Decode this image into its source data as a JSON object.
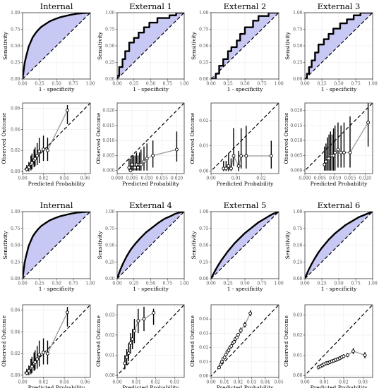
{
  "colors": {
    "roc_fill": "#c8c8f5",
    "curve": "#000000",
    "calib_line": "#999999",
    "grid": "#ebebeb",
    "frame": "#333333"
  },
  "chart_data": [
    {
      "type": "area",
      "title": "Internal",
      "xlabel": "1 - specificity",
      "ylabel": "Sensitivity",
      "xlim": [
        0,
        1
      ],
      "ylim": [
        0,
        1
      ],
      "xticks": [
        "0.00",
        "0.25",
        "0.50",
        "0.75",
        "1.00"
      ],
      "yticks": [
        "0.00",
        "0.25",
        "0.50",
        "0.75",
        "1.00"
      ],
      "x": [
        0,
        0.01,
        0.02,
        0.03,
        0.05,
        0.07,
        0.09,
        0.12,
        0.15,
        0.19,
        0.23,
        0.28,
        0.34,
        0.4,
        0.47,
        0.55,
        0.63,
        0.72,
        0.8,
        0.87,
        0.93,
        1
      ],
      "y": [
        0,
        0.08,
        0.16,
        0.24,
        0.33,
        0.41,
        0.49,
        0.56,
        0.63,
        0.69,
        0.74,
        0.79,
        0.83,
        0.87,
        0.9,
        0.93,
        0.95,
        0.97,
        0.985,
        0.99,
        0.995,
        1
      ]
    },
    {
      "type": "area",
      "title": "External 1",
      "xlabel": "1 - specificity",
      "ylabel": "Sensitivity",
      "xlim": [
        0,
        1
      ],
      "ylim": [
        0,
        1
      ],
      "xticks": [
        "0.00",
        "0.25",
        "0.50",
        "0.75",
        "1.00"
      ],
      "yticks": [
        "0.00",
        "0.25",
        "0.50",
        "0.75",
        "1.00"
      ],
      "x": [
        0,
        0,
        0.03,
        0.03,
        0.08,
        0.08,
        0.12,
        0.12,
        0.18,
        0.18,
        0.25,
        0.25,
        0.32,
        0.32,
        0.4,
        0.4,
        0.48,
        0.48,
        0.6,
        0.6,
        0.78,
        0.78,
        0.88,
        0.88,
        1
      ],
      "y": [
        0,
        0.05,
        0.05,
        0.18,
        0.18,
        0.3,
        0.3,
        0.42,
        0.42,
        0.55,
        0.55,
        0.62,
        0.62,
        0.7,
        0.7,
        0.78,
        0.78,
        0.85,
        0.85,
        0.92,
        0.92,
        0.96,
        0.96,
        1,
        1
      ]
    },
    {
      "type": "area",
      "title": "External 2",
      "xlabel": "1 - specificity",
      "ylabel": "Sensitivity",
      "xlim": [
        0,
        1
      ],
      "ylim": [
        0,
        1
      ],
      "xticks": [
        "0.00",
        "0.25",
        "0.50",
        "0.75",
        "1.00"
      ],
      "yticks": [
        "0.00",
        "0.25",
        "0.50",
        "0.75",
        "1.00"
      ],
      "x": [
        0,
        0.07,
        0.07,
        0.12,
        0.12,
        0.18,
        0.18,
        0.25,
        0.25,
        0.3,
        0.3,
        0.38,
        0.38,
        0.43,
        0.43,
        0.5,
        0.5,
        0.62,
        0.62,
        0.7,
        0.7,
        0.85,
        0.85,
        1
      ],
      "y": [
        0,
        0,
        0.08,
        0.08,
        0.2,
        0.2,
        0.3,
        0.3,
        0.42,
        0.42,
        0.48,
        0.48,
        0.58,
        0.58,
        0.68,
        0.68,
        0.78,
        0.78,
        0.88,
        0.88,
        0.95,
        0.95,
        1,
        1
      ]
    },
    {
      "type": "area",
      "title": "External 3",
      "xlabel": "1 - specificity",
      "ylabel": "Sensitivity",
      "xlim": [
        0,
        1
      ],
      "ylim": [
        0,
        1
      ],
      "xticks": [
        "0.00",
        "0.25",
        "0.50",
        "0.75",
        "1.00"
      ],
      "yticks": [
        "0.00",
        "0.25",
        "0.50",
        "0.75",
        "1.00"
      ],
      "x": [
        0,
        0.03,
        0.03,
        0.06,
        0.06,
        0.1,
        0.1,
        0.15,
        0.15,
        0.2,
        0.2,
        0.28,
        0.28,
        0.35,
        0.35,
        0.42,
        0.42,
        0.52,
        0.52,
        0.62,
        0.62,
        0.72,
        0.72,
        0.82,
        0.82,
        1
      ],
      "y": [
        0,
        0,
        0.08,
        0.08,
        0.18,
        0.18,
        0.28,
        0.28,
        0.4,
        0.4,
        0.52,
        0.52,
        0.6,
        0.6,
        0.68,
        0.68,
        0.76,
        0.76,
        0.84,
        0.84,
        0.9,
        0.9,
        0.96,
        0.96,
        1,
        1
      ]
    },
    {
      "type": "scatter",
      "title": "",
      "xlabel": "Predicted Probability",
      "ylabel": "Observed Outcome",
      "xlim": [
        0,
        0.065
      ],
      "ylim": [
        -0.002,
        0.065
      ],
      "xticks": [
        "0.00",
        "0.02",
        "0.04",
        "0.06"
      ],
      "yticks": [
        "0.00",
        "0.02",
        "0.04",
        "0.06"
      ],
      "x": [
        0.004,
        0.006,
        0.008,
        0.009,
        0.011,
        0.012,
        0.014,
        0.016,
        0.02,
        0.024,
        0.043
      ],
      "y": [
        0.002,
        0.004,
        0.007,
        0.008,
        0.011,
        0.012,
        0.015,
        0.019,
        0.021,
        0.02,
        0.058
      ],
      "lo": [
        0,
        0,
        0.001,
        0.002,
        0.004,
        0.005,
        0.006,
        0.008,
        0.01,
        0.01,
        0.045
      ],
      "hi": [
        0.006,
        0.009,
        0.015,
        0.017,
        0.021,
        0.023,
        0.027,
        0.032,
        0.034,
        0.032,
        0.063
      ]
    },
    {
      "type": "scatter",
      "title": "",
      "xlabel": "Predicted Probability",
      "ylabel": "Observed Outcome",
      "xlim": [
        0,
        0.0225
      ],
      "ylim": [
        -0.001,
        0.0225
      ],
      "xticks": [
        "0.000",
        "0.005",
        "0.010",
        "0.015",
        "0.020"
      ],
      "yticks": [
        "0.000",
        "0.005",
        "0.010",
        "0.015",
        "0.020"
      ],
      "x": [
        0.004,
        0.0045,
        0.005,
        0.0055,
        0.006,
        0.0065,
        0.007,
        0.0075,
        0.008,
        0.009,
        0.01,
        0.012,
        0.02
      ],
      "y": [
        0.001,
        0,
        0.002,
        0.001,
        0.001,
        0.002,
        0.001,
        0.002,
        0.002,
        0.003,
        0.004,
        0.005,
        0.007
      ],
      "lo": [
        0,
        0,
        0,
        0,
        0,
        0,
        0,
        0,
        0,
        0,
        0,
        0.001,
        0.003
      ],
      "hi": [
        0.004,
        0.004,
        0.005,
        0.005,
        0.005,
        0.006,
        0.005,
        0.006,
        0.007,
        0.008,
        0.009,
        0.01,
        0.013
      ]
    },
    {
      "type": "scatter",
      "title": "",
      "xlabel": "Predicted Probability",
      "ylabel": "Observed Outcome",
      "xlim": [
        0,
        0.027
      ],
      "ylim": [
        -0.001,
        0.027
      ],
      "xticks": [
        "0.00",
        "0.01",
        "0.02"
      ],
      "yticks": [
        "0.00",
        "0.01",
        "0.02"
      ],
      "x": [
        0.005,
        0.006,
        0.007,
        0.008,
        0.009,
        0.011,
        0.012,
        0.014,
        0.024
      ],
      "y": [
        0.001,
        0.001,
        0.002,
        0.001,
        0.006,
        0.002,
        0.006,
        0.006,
        0.006
      ],
      "lo": [
        0,
        0,
        0,
        0,
        0.002,
        0,
        0.001,
        0.001,
        0.001
      ],
      "hi": [
        0.004,
        0.004,
        0.007,
        0.005,
        0.017,
        0.008,
        0.017,
        0.018,
        0.012
      ]
    },
    {
      "type": "scatter",
      "title": "",
      "xlabel": "Predicted Probability",
      "ylabel": "Observed Outcome",
      "xlim": [
        0,
        0.0225
      ],
      "ylim": [
        -0.001,
        0.0225
      ],
      "xticks": [
        "0.000",
        "0.005",
        "0.010",
        "0.015",
        "0.020"
      ],
      "yticks": [
        "0.000",
        "0.005",
        "0.010",
        "0.015",
        "0.020"
      ],
      "x": [
        0.0065,
        0.007,
        0.0075,
        0.008,
        0.0085,
        0.009,
        0.0095,
        0.01,
        0.011,
        0.012,
        0.013,
        0.015,
        0.021
      ],
      "y": [
        0.002,
        0.003,
        0.004,
        0.004,
        0.005,
        0.005,
        0.005,
        0.006,
        0.007,
        0.006,
        0.006,
        0.006,
        0.016
      ],
      "lo": [
        0,
        0,
        0,
        0,
        0,
        0,
        0,
        0,
        0.001,
        0.001,
        0.001,
        0.001,
        0.008
      ],
      "hi": [
        0.008,
        0.009,
        0.011,
        0.012,
        0.013,
        0.012,
        0.014,
        0.015,
        0.016,
        0.015,
        0.016,
        0.018,
        0.023
      ]
    },
    {
      "type": "area",
      "title": "Internal",
      "xlabel": "1 - specificity",
      "ylabel": "Sensitivity",
      "xlim": [
        0,
        1
      ],
      "ylim": [
        0,
        1
      ],
      "xticks": [
        "0.00",
        "0.25",
        "0.50",
        "0.75",
        "1.00"
      ],
      "yticks": [
        "0.00",
        "0.25",
        "0.50",
        "0.75",
        "1.00"
      ],
      "x": [
        0,
        0.01,
        0.02,
        0.03,
        0.05,
        0.07,
        0.09,
        0.12,
        0.15,
        0.19,
        0.23,
        0.28,
        0.34,
        0.4,
        0.47,
        0.55,
        0.63,
        0.72,
        0.8,
        0.87,
        0.93,
        1
      ],
      "y": [
        0,
        0.08,
        0.16,
        0.24,
        0.33,
        0.41,
        0.49,
        0.56,
        0.63,
        0.69,
        0.74,
        0.79,
        0.83,
        0.87,
        0.9,
        0.93,
        0.95,
        0.97,
        0.985,
        0.99,
        0.995,
        1
      ]
    },
    {
      "type": "area",
      "title": "External 4",
      "xlabel": "1 - specificity",
      "ylabel": "Sensitivity",
      "xlim": [
        0,
        1
      ],
      "ylim": [
        0,
        1
      ],
      "xticks": [
        "0.00",
        "0.25",
        "0.50",
        "0.75",
        "1.00"
      ],
      "yticks": [
        "0.00",
        "0.25",
        "0.50",
        "0.75",
        "1.00"
      ],
      "x": [
        0,
        0.02,
        0.05,
        0.09,
        0.14,
        0.2,
        0.27,
        0.35,
        0.43,
        0.52,
        0.61,
        0.7,
        0.79,
        0.87,
        0.94,
        1
      ],
      "y": [
        0,
        0.06,
        0.14,
        0.23,
        0.33,
        0.43,
        0.52,
        0.61,
        0.69,
        0.76,
        0.83,
        0.89,
        0.93,
        0.97,
        0.99,
        1
      ]
    },
    {
      "type": "area",
      "title": "External 5",
      "xlabel": "1 - specificity",
      "ylabel": "Sensitivity",
      "xlim": [
        0,
        1
      ],
      "ylim": [
        0,
        1
      ],
      "xticks": [
        "0.00",
        "0.25",
        "0.50",
        "0.75",
        "1.00"
      ],
      "yticks": [
        "0.00",
        "0.25",
        "0.50",
        "0.75",
        "1.00"
      ],
      "x": [
        0,
        0.05,
        0.1,
        0.15,
        0.2,
        0.25,
        0.3,
        0.35,
        0.4,
        0.45,
        0.5,
        0.55,
        0.6,
        0.65,
        0.7,
        0.75,
        0.8,
        0.85,
        0.9,
        0.95,
        1
      ],
      "y": [
        0,
        0.1,
        0.19,
        0.27,
        0.34,
        0.41,
        0.47,
        0.53,
        0.58,
        0.63,
        0.68,
        0.72,
        0.76,
        0.8,
        0.84,
        0.87,
        0.9,
        0.93,
        0.96,
        0.98,
        1
      ]
    },
    {
      "type": "area",
      "title": "External 6",
      "xlabel": "1 - specificity",
      "ylabel": "Sensitivity",
      "xlim": [
        0,
        1
      ],
      "ylim": [
        0,
        1
      ],
      "xticks": [
        "0.00",
        "0.25",
        "0.50",
        "0.75",
        "1.00"
      ],
      "yticks": [
        "0.00",
        "0.25",
        "0.50",
        "0.75",
        "1.00"
      ],
      "x": [
        0,
        0.05,
        0.1,
        0.15,
        0.2,
        0.25,
        0.3,
        0.35,
        0.4,
        0.45,
        0.5,
        0.55,
        0.6,
        0.65,
        0.7,
        0.75,
        0.8,
        0.85,
        0.9,
        0.95,
        1
      ],
      "y": [
        0,
        0.12,
        0.22,
        0.31,
        0.39,
        0.46,
        0.52,
        0.58,
        0.63,
        0.68,
        0.72,
        0.76,
        0.8,
        0.83,
        0.86,
        0.89,
        0.92,
        0.94,
        0.96,
        0.98,
        1
      ]
    },
    {
      "type": "scatter",
      "title": "",
      "xlabel": "Predicted Probability",
      "ylabel": "Observed Outcome",
      "xlim": [
        0,
        0.065
      ],
      "ylim": [
        -0.002,
        0.065
      ],
      "xticks": [
        "0.00",
        "0.02",
        "0.04",
        "0.06"
      ],
      "yticks": [
        "0.00",
        "0.02",
        "0.04",
        "0.06"
      ],
      "x": [
        0.004,
        0.006,
        0.008,
        0.009,
        0.011,
        0.012,
        0.014,
        0.016,
        0.02,
        0.024,
        0.043
      ],
      "y": [
        0.002,
        0.004,
        0.007,
        0.008,
        0.011,
        0.012,
        0.015,
        0.019,
        0.021,
        0.02,
        0.058
      ],
      "lo": [
        0,
        0,
        0.001,
        0.002,
        0.004,
        0.005,
        0.006,
        0.008,
        0.01,
        0.01,
        0.045
      ],
      "hi": [
        0.006,
        0.009,
        0.015,
        0.017,
        0.021,
        0.023,
        0.027,
        0.032,
        0.034,
        0.032,
        0.063
      ]
    },
    {
      "type": "scatter",
      "title": "",
      "xlabel": "Predicted Probability",
      "ylabel": "Observed Outcome",
      "xlim": [
        0,
        0.035
      ],
      "ylim": [
        -0.001,
        0.035
      ],
      "xticks": [
        "0.00",
        "0.01",
        "0.02",
        "0.03"
      ],
      "yticks": [
        "0.00",
        "0.01",
        "0.02",
        "0.03"
      ],
      "x": [
        0.004,
        0.005,
        0.006,
        0.007,
        0.008,
        0.009,
        0.011,
        0.014,
        0.019
      ],
      "y": [
        0.006,
        0.009,
        0.011,
        0.016,
        0.018,
        0.022,
        0.027,
        0.028,
        0.031
      ],
      "lo": [
        0.003,
        0.005,
        0.007,
        0.011,
        0.013,
        0.016,
        0.021,
        0.022,
        0.025
      ],
      "hi": [
        0.01,
        0.013,
        0.016,
        0.021,
        0.023,
        0.028,
        0.033,
        0.034,
        0.033
      ]
    },
    {
      "type": "scatter",
      "title": "",
      "xlabel": "Predicted Probability",
      "ylabel": "Observed Outcome",
      "xlim": [
        0,
        0.05
      ],
      "ylim": [
        -0.001,
        0.05
      ],
      "xticks": [
        "0.00",
        "0.01",
        "0.02",
        "0.03",
        "0.04",
        "0.05"
      ],
      "yticks": [
        "0.00",
        "0.01",
        "0.02",
        "0.03",
        "0.04"
      ],
      "x": [
        0.006,
        0.007,
        0.008,
        0.009,
        0.01,
        0.011,
        0.012,
        0.013,
        0.014,
        0.015,
        0.016,
        0.017,
        0.018,
        0.019,
        0.02,
        0.022,
        0.025,
        0.029
      ],
      "y": [
        0.006,
        0.008,
        0.01,
        0.012,
        0.013,
        0.015,
        0.017,
        0.018,
        0.02,
        0.021,
        0.023,
        0.024,
        0.026,
        0.027,
        0.029,
        0.032,
        0.036,
        0.044
      ],
      "lo": [
        0.005,
        0.007,
        0.009,
        0.011,
        0.012,
        0.014,
        0.016,
        0.017,
        0.019,
        0.02,
        0.022,
        0.023,
        0.025,
        0.026,
        0.028,
        0.03,
        0.034,
        0.042
      ],
      "hi": [
        0.007,
        0.009,
        0.011,
        0.013,
        0.014,
        0.016,
        0.018,
        0.019,
        0.021,
        0.022,
        0.024,
        0.025,
        0.027,
        0.028,
        0.03,
        0.034,
        0.038,
        0.046
      ]
    },
    {
      "type": "scatter",
      "title": "",
      "xlabel": "Predicted Probability",
      "ylabel": "Observed Outcome",
      "xlim": [
        0,
        0.035
      ],
      "ylim": [
        -0.001,
        0.035
      ],
      "xticks": [
        "0.00",
        "0.01",
        "0.02",
        "0.03"
      ],
      "yticks": [
        "0.00",
        "0.01",
        "0.02",
        "0.03"
      ],
      "x": [
        0.007,
        0.008,
        0.009,
        0.01,
        0.011,
        0.012,
        0.013,
        0.014,
        0.015,
        0.016,
        0.017,
        0.018,
        0.019,
        0.02,
        0.022,
        0.025,
        0.031
      ],
      "y": [
        0.004,
        0.0045,
        0.005,
        0.0055,
        0.006,
        0.0062,
        0.0066,
        0.007,
        0.0073,
        0.0077,
        0.008,
        0.0085,
        0.009,
        0.0095,
        0.01,
        0.012,
        0.01
      ],
      "lo": [
        0.003,
        0.0035,
        0.004,
        0.0045,
        0.005,
        0.0052,
        0.0056,
        0.006,
        0.0063,
        0.0067,
        0.007,
        0.0075,
        0.008,
        0.0085,
        0.009,
        0.0105,
        0.0085
      ],
      "hi": [
        0.005,
        0.0055,
        0.006,
        0.0065,
        0.007,
        0.0072,
        0.0076,
        0.008,
        0.0083,
        0.0087,
        0.009,
        0.0095,
        0.01,
        0.0105,
        0.011,
        0.0135,
        0.0115
      ]
    }
  ]
}
